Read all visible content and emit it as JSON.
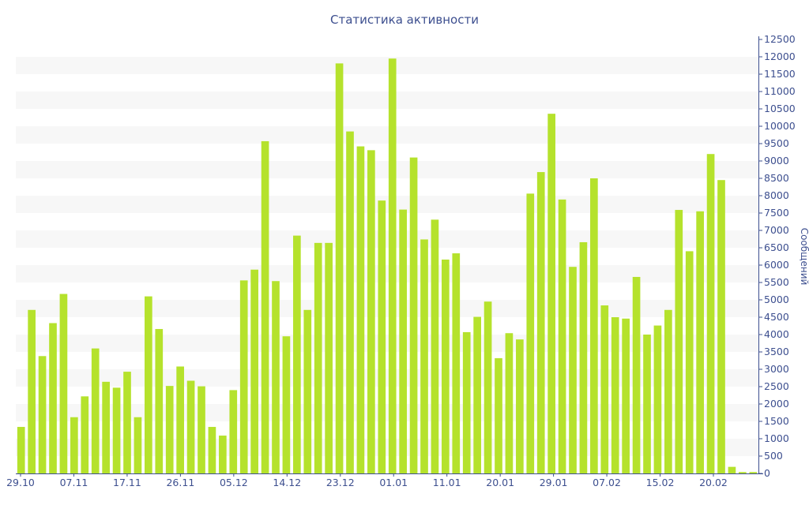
{
  "chart_data": {
    "type": "bar",
    "title": "Статистика активности",
    "xlabel": "",
    "ylabel": "Сообщений",
    "ylim": [
      0,
      12500
    ],
    "ytick_step": 500,
    "grid": "alternating horizontal bands",
    "legend": "none",
    "colors": {
      "bar": "#b5e22c",
      "band": "#f7f7f7",
      "text": "#3d4f8f",
      "axis": "#3d4f8f"
    },
    "x_tick_labels": [
      "29.10",
      "07.11",
      "17.11",
      "26.11",
      "05.12",
      "14.12",
      "23.12",
      "01.01",
      "11.01",
      "20.01",
      "29.01",
      "07.02",
      "15.02",
      "20.02"
    ],
    "values": [
      1340,
      4710,
      3380,
      4330,
      5170,
      1620,
      2220,
      3600,
      2640,
      2470,
      2930,
      1620,
      5100,
      4160,
      2520,
      3080,
      2670,
      2510,
      1340,
      1090,
      2400,
      5560,
      5870,
      9570,
      5540,
      3950,
      6850,
      4710,
      6640,
      6640,
      11810,
      9850,
      9420,
      9310,
      7860,
      11950,
      7600,
      9100,
      6740,
      7310,
      6160,
      6340,
      4070,
      4510,
      4950,
      3320,
      4040,
      3860,
      8060,
      8680,
      10360,
      7890,
      5950,
      6660,
      8500,
      4840,
      4500,
      4460,
      5660,
      4000,
      4260,
      4710,
      7590,
      6400,
      7550,
      9200,
      8450,
      190,
      40,
      40
    ]
  }
}
